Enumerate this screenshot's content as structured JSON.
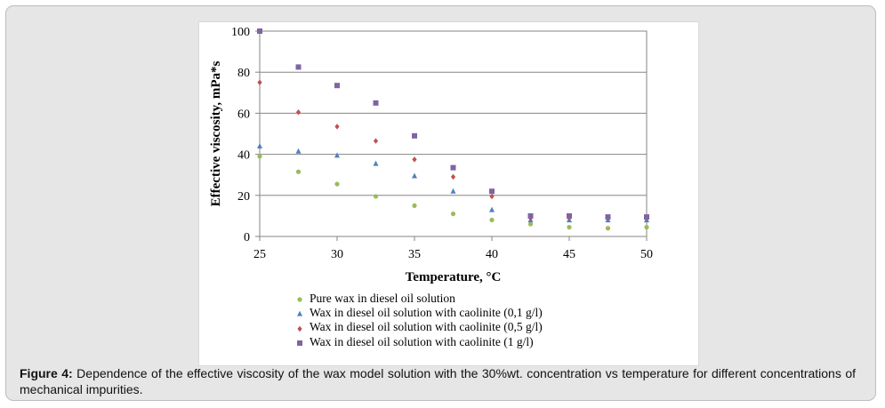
{
  "chart_data": {
    "type": "scatter",
    "title": "",
    "xlabel": "Temperature, °C",
    "ylabel": "Effective viscosity, mPa*s",
    "xlim": [
      25,
      50
    ],
    "ylim": [
      0,
      100
    ],
    "xticks": [
      "25",
      "30",
      "35",
      "40",
      "45",
      "50"
    ],
    "yticks": [
      "0",
      "20",
      "40",
      "60",
      "80",
      "100"
    ],
    "x": [
      25,
      27.5,
      30,
      32.5,
      35,
      37.5,
      40,
      42.5,
      45,
      47.5,
      50
    ],
    "grid": "horizontal",
    "legend_position": "bottom",
    "series": [
      {
        "name": "Pure wax in diesel oil solution",
        "color": "#9bbb59",
        "marker": "circle",
        "values": [
          39,
          31.5,
          25.5,
          19.5,
          15,
          11,
          8,
          6,
          4.5,
          4,
          4.5
        ]
      },
      {
        "name": "Wax in diesel oil solution with caolinite (0,1 g/l)",
        "color": "#4f81bd",
        "marker": "triangle",
        "values": [
          44,
          41.5,
          39.5,
          35.5,
          29.5,
          22,
          13,
          8,
          8,
          8,
          8
        ]
      },
      {
        "name": "Wax in diesel oil solution with caolinite (0,5 g/l)",
        "color": "#c0504d",
        "marker": "diamond",
        "values": [
          75,
          60.5,
          53.5,
          46.5,
          37.5,
          29,
          19.5,
          9,
          9,
          9,
          9
        ]
      },
      {
        "name": "Wax in diesel oil solution with caolinite (1 g/l)",
        "color": "#8064a2",
        "marker": "square",
        "values": [
          100,
          82.5,
          73.5,
          65,
          49,
          33.5,
          22,
          10,
          10,
          9.5,
          9.5
        ]
      }
    ]
  },
  "caption": {
    "label": "Figure 4:",
    "text": " Dependence of the effective viscosity of the wax model solution with the 30%wt. concentration vs temperature for different concentrations of mechanical impurities."
  }
}
